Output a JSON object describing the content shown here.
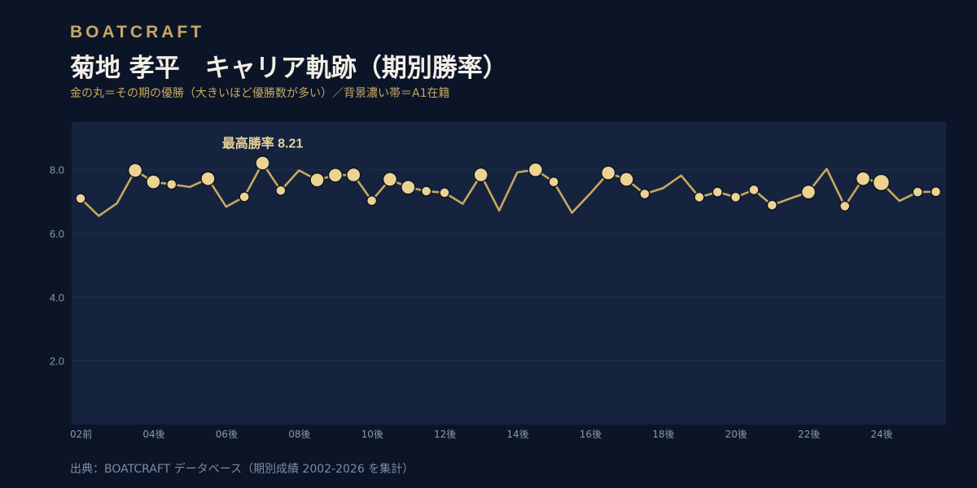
{
  "header": {
    "brand": "BOATCRAFT",
    "title": "菊地 孝平　キャリア軌跡（期別勝率）",
    "subtitle": "金の丸＝その期の優勝（大きいほど優勝数が多い）／背景濃い帯＝A1在籍"
  },
  "footer": {
    "source": "出典：BOATCRAFT データベース（期別成績 2002-2026 を集計）"
  },
  "colors": {
    "background": "#0c1528",
    "a1_band": "#15233f",
    "line": "#c8a85f",
    "marker": "#ecd391",
    "marker_stroke": "#0c1528"
  },
  "chart_data": {
    "type": "line",
    "title": "菊地 孝平　キャリア軌跡（期別勝率）",
    "xlabel": "",
    "ylabel": "",
    "ylim": [
      0,
      9.5
    ],
    "yticks": [
      "2.0",
      "4.0",
      "6.0",
      "8.0"
    ],
    "ytick_values": [
      2.0,
      4.0,
      6.0,
      8.0
    ],
    "grid": true,
    "xtick_labels": [
      {
        "label": "02前",
        "index": 0
      },
      {
        "label": "04後",
        "index": 4
      },
      {
        "label": "06後",
        "index": 8
      },
      {
        "label": "08後",
        "index": 12
      },
      {
        "label": "10後",
        "index": 16
      },
      {
        "label": "12後",
        "index": 20
      },
      {
        "label": "14後",
        "index": 24
      },
      {
        "label": "16後",
        "index": 28
      },
      {
        "label": "18後",
        "index": 32
      },
      {
        "label": "20後",
        "index": 36
      },
      {
        "label": "22後",
        "index": 40
      },
      {
        "label": "24後",
        "index": 44
      }
    ],
    "a1_band": {
      "from_index": 0,
      "to_index": 48
    },
    "annotation": {
      "text": "最高勝率 8.21",
      "index": 10
    },
    "series": [
      {
        "values": [
          7.1,
          6.55,
          6.95,
          7.98,
          7.62,
          7.54,
          7.46,
          7.72,
          6.84,
          7.15,
          8.21,
          7.35,
          7.98,
          7.68,
          7.83,
          7.84,
          7.03,
          7.7,
          7.45,
          7.33,
          7.28,
          6.93,
          7.84,
          6.72,
          7.92,
          8.0,
          7.62,
          6.65,
          7.25,
          7.9,
          7.7,
          7.24,
          7.42,
          7.82,
          7.14,
          7.3,
          7.14,
          7.37,
          6.89,
          7.1,
          7.3,
          8.03,
          6.86,
          7.72,
          7.6,
          7.02,
          7.3,
          7.31
        ],
        "wins": [
          1,
          0,
          0,
          2,
          2,
          1,
          0,
          2,
          0,
          1,
          2,
          1,
          0,
          2,
          2,
          2,
          1,
          2,
          2,
          1,
          1,
          0,
          2,
          0,
          0,
          2,
          1,
          0,
          0,
          2,
          2,
          1,
          0,
          0,
          1,
          1,
          1,
          1,
          1,
          0,
          2,
          0,
          1,
          2,
          3,
          0,
          1,
          1
        ]
      }
    ]
  }
}
